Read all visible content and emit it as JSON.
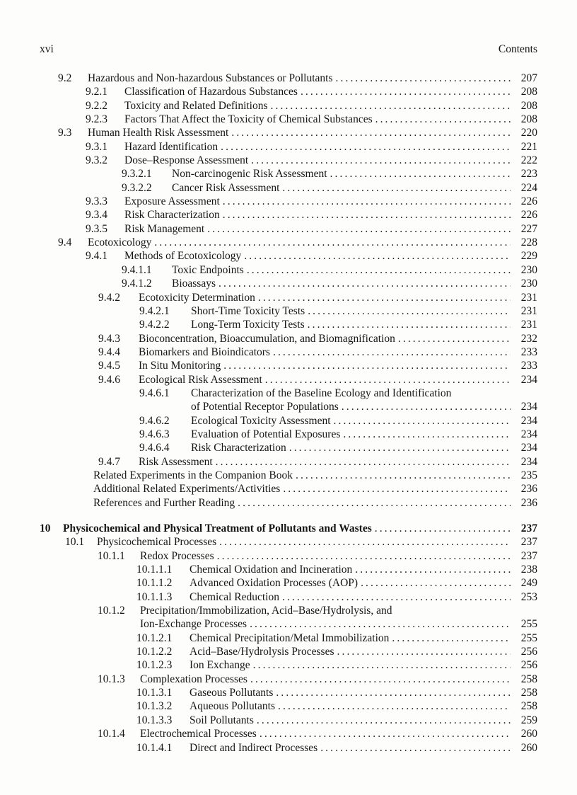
{
  "header": {
    "folio": "xvi",
    "title": "Contents"
  },
  "colors": {
    "paper": "#fdfdfc",
    "ink": "#161616"
  },
  "toc": {
    "entries": [
      {
        "level": "lv-9-1",
        "num": "9.2",
        "text": "Hazardous and Non-hazardous Substances or Pollutants",
        "page": "207"
      },
      {
        "level": "lv-9-2",
        "num": "9.2.1",
        "text": "Classification of Hazardous Substances",
        "page": "208"
      },
      {
        "level": "lv-9-2",
        "num": "9.2.2",
        "text": "Toxicity and Related Definitions",
        "page": "208"
      },
      {
        "level": "lv-9-2",
        "num": "9.2.3",
        "text": "Factors That Affect the Toxicity of Chemical Substances",
        "page": "208"
      },
      {
        "level": "lv-9-1",
        "num": "9.3",
        "text": "Human Health Risk Assessment",
        "page": "220"
      },
      {
        "level": "lv-9-2",
        "num": "9.3.1",
        "text": "Hazard Identification",
        "page": "221"
      },
      {
        "level": "lv-9-2",
        "num": "9.3.2",
        "text": "Dose–Response Assessment",
        "page": "222"
      },
      {
        "level": "lv-9-3",
        "num": "9.3.2.1",
        "text": "Non-carcinogenic Risk Assessment",
        "page": "223"
      },
      {
        "level": "lv-9-3",
        "num": "9.3.2.2",
        "text": "Cancer Risk Assessment",
        "page": "224"
      },
      {
        "level": "lv-9-2",
        "num": "9.3.3",
        "text": "Exposure Assessment",
        "page": "226"
      },
      {
        "level": "lv-9-2",
        "num": "9.3.4",
        "text": "Risk Characterization",
        "page": "226"
      },
      {
        "level": "lv-9-2",
        "num": "9.3.5",
        "text": "Risk Management",
        "page": "227"
      },
      {
        "level": "lv-9-1",
        "num": "9.4",
        "text": "Ecotoxicology",
        "page": "228"
      },
      {
        "level": "lv-9-2",
        "num": "9.4.1",
        "text": "Methods of Ecotoxicology",
        "page": "229"
      },
      {
        "level": "lv-9-3",
        "num": "9.4.1.1",
        "text": "Toxic Endpoints",
        "page": "230"
      },
      {
        "level": "lv-9-3",
        "num": "9.4.1.2",
        "text": "Bioassays",
        "page": "230"
      },
      {
        "level": "lv-9-2b",
        "num": "9.4.2",
        "text": "Ecotoxicity Determination",
        "page": "231"
      },
      {
        "level": "lv-9-3b",
        "num": "9.4.2.1",
        "text": "Short-Time Toxicity Tests",
        "page": "231"
      },
      {
        "level": "lv-9-3b",
        "num": "9.4.2.2",
        "text": "Long-Term Toxicity Tests",
        "page": "231"
      },
      {
        "level": "lv-9-2b",
        "num": "9.4.3",
        "text": "Bioconcentration, Bioaccumulation, and Biomagnification",
        "page": "232"
      },
      {
        "level": "lv-9-2b",
        "num": "9.4.4",
        "text": "Biomarkers and Bioindicators",
        "page": "233"
      },
      {
        "level": "lv-9-2b",
        "num": "9.4.5",
        "text": "In Situ Monitoring",
        "page": "233"
      },
      {
        "level": "lv-9-2b",
        "num": "9.4.6",
        "text": "Ecological Risk Assessment",
        "page": "234"
      },
      {
        "level": "lv-9-3b",
        "num": "9.4.6.1",
        "text": "Characterization of the Baseline Ecology and Identification",
        "page": ""
      },
      {
        "level": "lv-9-cont",
        "num": "",
        "text": "of Potential Receptor Populations",
        "page": "234"
      },
      {
        "level": "lv-9-3b",
        "num": "9.4.6.2",
        "text": "Ecological Toxicity Assessment",
        "page": "234"
      },
      {
        "level": "lv-9-3b",
        "num": "9.4.6.3",
        "text": "Evaluation of Potential Exposures",
        "page": "234"
      },
      {
        "level": "lv-9-3b",
        "num": "9.4.6.4",
        "text": "Risk Characterization",
        "page": "234"
      },
      {
        "level": "lv-9-2b",
        "num": "9.4.7",
        "text": "Risk Assessment",
        "page": "234"
      },
      {
        "level": "lv-9-plain",
        "num": "",
        "text": "Related Experiments in the Companion Book",
        "page": "235"
      },
      {
        "level": "lv-9-plain",
        "num": "",
        "text": "Additional Related Experiments/Activities",
        "page": "236"
      },
      {
        "level": "lv-9-plain",
        "num": "",
        "text": "References and Further Reading",
        "page": "236"
      },
      {
        "level": "lv-ch",
        "num": "10",
        "text": "Physicochemical and Physical Treatment of Pollutants and Wastes",
        "page": "237",
        "bold": true,
        "gap_before": true
      },
      {
        "level": "lv-10-1",
        "num": "10.1",
        "text": "Physicochemical Processes",
        "page": "237"
      },
      {
        "level": "lv-10-2",
        "num": "10.1.1",
        "text": "Redox Processes",
        "page": "237"
      },
      {
        "level": "lv-10-3",
        "num": "10.1.1.1",
        "text": "Chemical Oxidation and Incineration",
        "page": "238"
      },
      {
        "level": "lv-10-3",
        "num": "10.1.1.2",
        "text": "Advanced Oxidation Processes (AOP)",
        "page": "249"
      },
      {
        "level": "lv-10-3",
        "num": "10.1.1.3",
        "text": "Chemical Reduction",
        "page": "253"
      },
      {
        "level": "lv-10-2",
        "num": "10.1.2",
        "text": "Precipitation/Immobilization, Acid–Base/Hydrolysis, and",
        "page": ""
      },
      {
        "level": "lv-10-cont",
        "num": "",
        "text": "Ion-Exchange Processes",
        "page": "255"
      },
      {
        "level": "lv-10-3",
        "num": "10.1.2.1",
        "text": "Chemical Precipitation/Metal Immobilization",
        "page": "255"
      },
      {
        "level": "lv-10-3",
        "num": "10.1.2.2",
        "text": "Acid–Base/Hydrolysis Processes",
        "page": "256"
      },
      {
        "level": "lv-10-3",
        "num": "10.1.2.3",
        "text": "Ion Exchange",
        "page": "256"
      },
      {
        "level": "lv-10-2",
        "num": "10.1.3",
        "text": "Complexation Processes",
        "page": "258"
      },
      {
        "level": "lv-10-3",
        "num": "10.1.3.1",
        "text": "Gaseous Pollutants",
        "page": "258"
      },
      {
        "level": "lv-10-3",
        "num": "10.1.3.2",
        "text": "Aqueous Pollutants",
        "page": "258"
      },
      {
        "level": "lv-10-3",
        "num": "10.1.3.3",
        "text": "Soil Pollutants",
        "page": "259"
      },
      {
        "level": "lv-10-2",
        "num": "10.1.4",
        "text": "Electrochemical Processes",
        "page": "260"
      },
      {
        "level": "lv-10-3",
        "num": "10.1.4.1",
        "text": "Direct and Indirect Processes",
        "page": "260"
      }
    ]
  }
}
